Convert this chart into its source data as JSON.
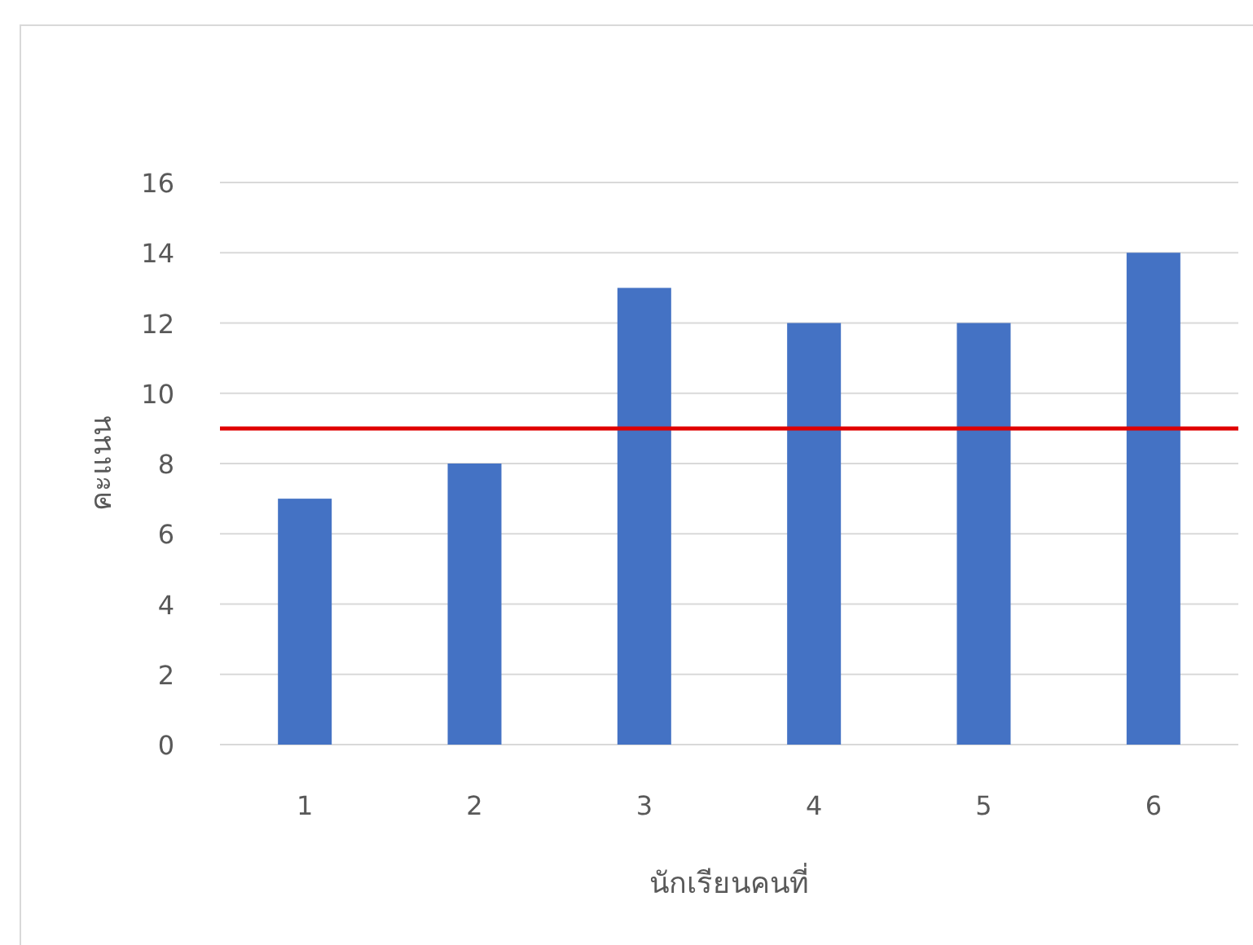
{
  "chart_data": {
    "type": "bar",
    "xlabel": "นักเรียนคนที่",
    "ylabel": "คะแนน",
    "categories": [
      "1",
      "2",
      "3",
      "4",
      "5",
      "6"
    ],
    "values": [
      7,
      8,
      13,
      12,
      12,
      14
    ],
    "color": "#4472c4",
    "ylim": [
      0,
      16
    ],
    "yticks": [
      0,
      2,
      4,
      6,
      8,
      10,
      12,
      14,
      16
    ],
    "grid": "y",
    "ref_lines": [
      {
        "axis": "y",
        "value": 9,
        "color": "#e00000"
      }
    ]
  }
}
